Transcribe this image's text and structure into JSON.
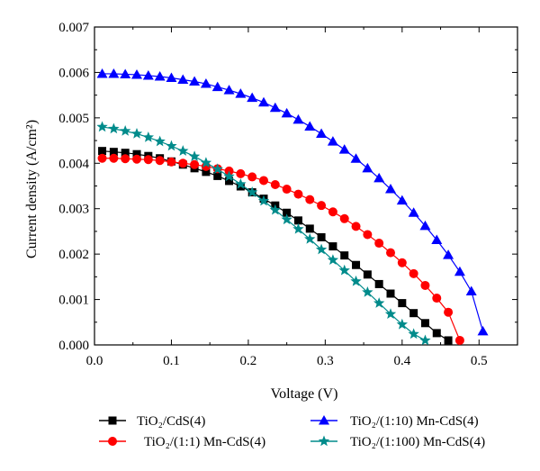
{
  "chart_data": {
    "type": "line",
    "xlabel": "Voltage (V)",
    "ylabel": "Current density (A/cm²)",
    "xlim": [
      0.0,
      0.55
    ],
    "ylim": [
      0.0,
      0.007
    ],
    "xticks": [
      "0.0",
      "0.1",
      "0.2",
      "0.3",
      "0.4",
      "0.5"
    ],
    "yticks": [
      "0.000",
      "0.001",
      "0.002",
      "0.003",
      "0.004",
      "0.005",
      "0.006",
      "0.007"
    ],
    "legend_position": "bottom",
    "grid": false,
    "series": [
      {
        "name": "TiO₂/CdS(4)",
        "marker": "square",
        "color": "#000000",
        "x": [
          0.01,
          0.025,
          0.04,
          0.055,
          0.07,
          0.085,
          0.1,
          0.115,
          0.13,
          0.145,
          0.16,
          0.175,
          0.19,
          0.205,
          0.22,
          0.235,
          0.25,
          0.265,
          0.28,
          0.295,
          0.31,
          0.325,
          0.34,
          0.355,
          0.37,
          0.385,
          0.4,
          0.415,
          0.43,
          0.445,
          0.46
        ],
        "y": [
          0.00427,
          0.00425,
          0.00423,
          0.0042,
          0.00416,
          0.00411,
          0.00404,
          0.00397,
          0.00389,
          0.00381,
          0.00372,
          0.00361,
          0.00349,
          0.00336,
          0.00322,
          0.00307,
          0.00291,
          0.00274,
          0.00256,
          0.00237,
          0.00217,
          0.00197,
          0.00176,
          0.00155,
          0.00134,
          0.00113,
          0.00092,
          0.0007,
          0.00048,
          0.00026,
          0.0001
        ]
      },
      {
        "name": "TiO₂/(1:1) Mn-CdS(4)",
        "marker": "circle",
        "color": "#ff0000",
        "x": [
          0.01,
          0.025,
          0.04,
          0.055,
          0.07,
          0.085,
          0.1,
          0.115,
          0.13,
          0.145,
          0.16,
          0.175,
          0.19,
          0.205,
          0.22,
          0.235,
          0.25,
          0.265,
          0.28,
          0.295,
          0.31,
          0.325,
          0.34,
          0.355,
          0.37,
          0.385,
          0.4,
          0.415,
          0.43,
          0.445,
          0.46,
          0.475
        ],
        "y": [
          0.00411,
          0.00411,
          0.0041,
          0.00409,
          0.00408,
          0.00406,
          0.00403,
          0.004,
          0.00397,
          0.00393,
          0.00388,
          0.00383,
          0.00377,
          0.0037,
          0.00362,
          0.00353,
          0.00343,
          0.00332,
          0.0032,
          0.00307,
          0.00293,
          0.00278,
          0.00261,
          0.00243,
          0.00224,
          0.00203,
          0.00181,
          0.00157,
          0.00131,
          0.00103,
          0.00072,
          0.0001
        ]
      },
      {
        "name": "TiO₂/(1:10) Mn-CdS(4)",
        "marker": "triangle",
        "color": "#0000ff",
        "x": [
          0.01,
          0.025,
          0.04,
          0.055,
          0.07,
          0.085,
          0.1,
          0.115,
          0.13,
          0.145,
          0.16,
          0.175,
          0.19,
          0.205,
          0.22,
          0.235,
          0.25,
          0.265,
          0.28,
          0.295,
          0.31,
          0.325,
          0.34,
          0.355,
          0.37,
          0.385,
          0.4,
          0.415,
          0.43,
          0.445,
          0.46,
          0.475,
          0.49,
          0.505
        ],
        "y": [
          0.00597,
          0.00597,
          0.00596,
          0.00595,
          0.00593,
          0.00591,
          0.00588,
          0.00584,
          0.0058,
          0.00575,
          0.00568,
          0.00561,
          0.00553,
          0.00544,
          0.00534,
          0.00522,
          0.0051,
          0.00496,
          0.00481,
          0.00465,
          0.00448,
          0.0043,
          0.0041,
          0.00389,
          0.00367,
          0.00343,
          0.00318,
          0.00291,
          0.00262,
          0.00231,
          0.00198,
          0.00161,
          0.00118,
          0.0003
        ]
      },
      {
        "name": "TiO₂/(1:100) Mn-CdS(4)",
        "marker": "star",
        "color": "#008b8b",
        "x": [
          0.01,
          0.025,
          0.04,
          0.055,
          0.07,
          0.085,
          0.1,
          0.115,
          0.13,
          0.145,
          0.16,
          0.175,
          0.19,
          0.205,
          0.22,
          0.235,
          0.25,
          0.265,
          0.28,
          0.295,
          0.31,
          0.325,
          0.34,
          0.355,
          0.37,
          0.385,
          0.4,
          0.415,
          0.43
        ],
        "y": [
          0.0048,
          0.00476,
          0.00471,
          0.00465,
          0.00457,
          0.00448,
          0.00438,
          0.00427,
          0.00415,
          0.00401,
          0.00387,
          0.00371,
          0.00354,
          0.00336,
          0.00317,
          0.00297,
          0.00276,
          0.00255,
          0.00233,
          0.0021,
          0.00187,
          0.00164,
          0.0014,
          0.00116,
          0.00092,
          0.00068,
          0.00045,
          0.00024,
          0.0001
        ]
      }
    ]
  }
}
